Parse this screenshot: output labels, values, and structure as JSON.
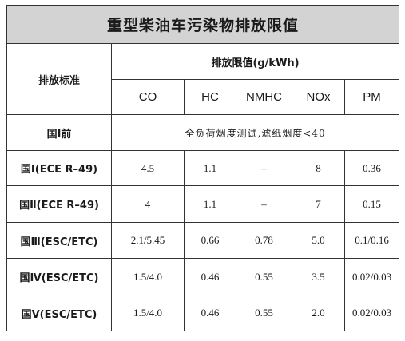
{
  "title": "重型柴油车污染物排放限值",
  "header": {
    "standard_label": "排放标准",
    "limit_label": "排放限值(g/kWh)",
    "columns": [
      "CO",
      "HC",
      "NMHC",
      "NOx",
      "PM"
    ]
  },
  "pre_row": {
    "label": "国Ⅰ前",
    "note": "全负荷烟度测试,滤纸烟度<40"
  },
  "rows": [
    {
      "label": "国Ⅰ(ECE R–49)",
      "values": [
        "4.5",
        "1.1",
        "–",
        "8",
        "0.36"
      ]
    },
    {
      "label": "国Ⅱ(ECE R–49)",
      "values": [
        "4",
        "1.1",
        "–",
        "7",
        "0.15"
      ]
    },
    {
      "label": "国Ⅲ(ESC/ETC)",
      "values": [
        "2.1/5.45",
        "0.66",
        "0.78",
        "5.0",
        "0.1/0.16"
      ]
    },
    {
      "label": "国Ⅳ(ESC/ETC)",
      "values": [
        "1.5/4.0",
        "0.46",
        "0.55",
        "3.5",
        "0.02/0.03"
      ]
    },
    {
      "label": "国Ⅴ(ESC/ETC)",
      "values": [
        "1.5/4.0",
        "0.46",
        "0.55",
        "2.0",
        "0.02/0.03"
      ]
    }
  ]
}
